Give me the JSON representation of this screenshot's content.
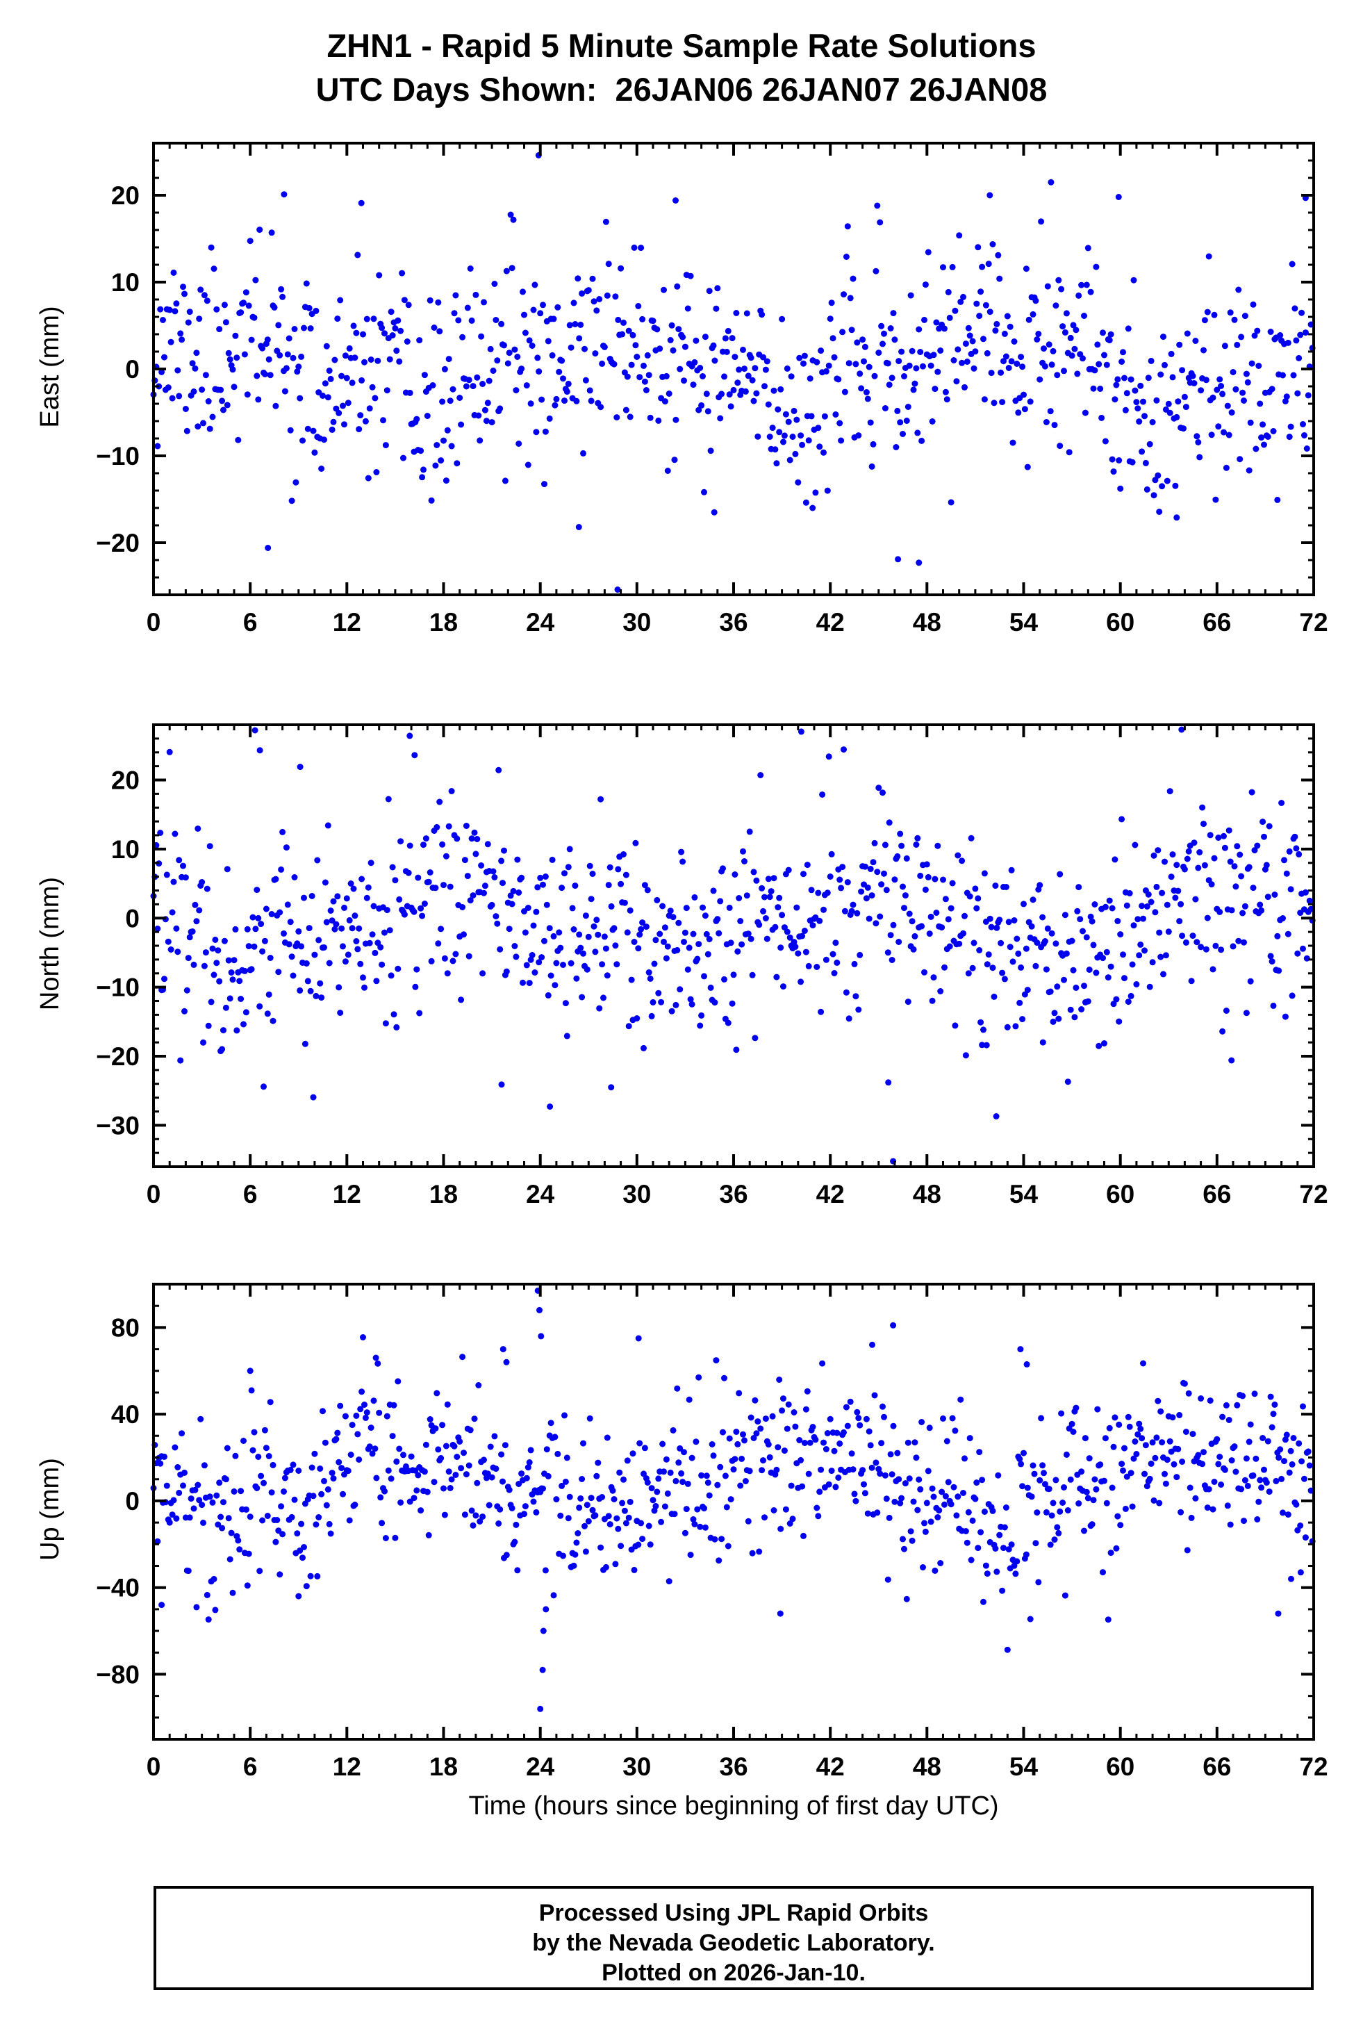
{
  "title": {
    "line1": "ZHN1 - Rapid 5 Minute Sample Rate Solutions",
    "line2": "UTC Days Shown:  26JAN06 26JAN07 26JAN08"
  },
  "xlabel": "Time (hours since beginning of first day UTC)",
  "footer": {
    "lines": [
      "Processed Using JPL Rapid Orbits",
      "by the Nevada Geodetic Laboratory.",
      "Plotted on 2026-Jan-10."
    ]
  },
  "chart_data": [
    {
      "type": "scatter",
      "id": "east",
      "ylabel": "East (mm)",
      "xlim": [
        0,
        72
      ],
      "ylim": [
        -26,
        26
      ],
      "xticks": [
        0,
        6,
        12,
        18,
        24,
        30,
        36,
        42,
        48,
        54,
        60,
        66,
        72
      ],
      "yticks": [
        -20,
        -10,
        0,
        10,
        20
      ],
      "x_minor": 1,
      "y_minor": 2,
      "marker_color": "#0000EE",
      "marker_diameter_px": 9,
      "n_points": 864,
      "offset": 0,
      "noise_sigma": 5.5,
      "waves": [
        {
          "amp": 3.0,
          "period": 24,
          "phase": 0.7
        },
        {
          "amp": 1.6,
          "period": 7.3,
          "phase": 2.1
        }
      ],
      "seed": 11,
      "outliers": [
        [
          23.9,
          24.6
        ],
        [
          28.8,
          -25.4
        ],
        [
          7.1,
          -20.6
        ],
        [
          47.5,
          -22.3
        ],
        [
          55.7,
          21.5
        ],
        [
          59.9,
          19.8
        ],
        [
          51.9,
          20.0
        ],
        [
          12.9,
          19.1
        ],
        [
          32.4,
          19.4
        ],
        [
          8.1,
          20.1
        ],
        [
          71.5,
          19.7
        ],
        [
          46.2,
          -21.9
        ],
        [
          34.8,
          -16.5
        ],
        [
          40.9,
          -16.0
        ],
        [
          63.5,
          -17.1
        ],
        [
          26.4,
          -18.2
        ]
      ]
    },
    {
      "type": "scatter",
      "id": "north",
      "ylabel": "North (mm)",
      "xlim": [
        0,
        72
      ],
      "ylim": [
        -36,
        28
      ],
      "xticks": [
        0,
        6,
        12,
        18,
        24,
        30,
        36,
        42,
        48,
        54,
        60,
        66,
        72
      ],
      "yticks": [
        -30,
        -20,
        -10,
        0,
        10,
        20
      ],
      "x_minor": 1,
      "y_minor": 2,
      "marker_color": "#0000EE",
      "marker_diameter_px": 9,
      "n_points": 864,
      "offset": -1,
      "noise_sigma": 7.0,
      "waves": [
        {
          "amp": 4.0,
          "period": 24,
          "phase": 2.6
        },
        {
          "amp": 2.0,
          "period": 9.1,
          "phase": 0.9
        }
      ],
      "seed": 22,
      "outliers": [
        [
          6.3,
          27.2
        ],
        [
          15.9,
          26.4
        ],
        [
          16.2,
          23.6
        ],
        [
          40.2,
          27.0
        ],
        [
          63.8,
          27.3
        ],
        [
          45.9,
          -35.2
        ],
        [
          24.6,
          -27.3
        ],
        [
          52.3,
          -28.7
        ],
        [
          21.6,
          -24.1
        ],
        [
          28.4,
          -24.5
        ],
        [
          45.6,
          -23.8
        ],
        [
          9.1,
          21.9
        ],
        [
          6.6,
          24.3
        ],
        [
          55.2,
          -18.0
        ],
        [
          51.7,
          -18.4
        ],
        [
          66.9,
          -20.6
        ]
      ]
    },
    {
      "type": "scatter",
      "id": "up",
      "ylabel": "Up (mm)",
      "xlim": [
        0,
        72
      ],
      "ylim": [
        -110,
        100
      ],
      "xticks": [
        0,
        6,
        12,
        18,
        24,
        30,
        36,
        42,
        48,
        54,
        60,
        66,
        72
      ],
      "yticks": [
        -80,
        -40,
        0,
        40,
        80
      ],
      "x_minor": 1,
      "y_minor": 10,
      "marker_color": "#0000EE",
      "marker_diameter_px": 9,
      "n_points": 864,
      "offset": 8,
      "noise_sigma": 19,
      "waves": [
        {
          "amp": 13.0,
          "period": 24,
          "phase": 3.6
        },
        {
          "amp": 6.0,
          "period": 6.2,
          "phase": 1.0
        }
      ],
      "seed": 33,
      "outliers": [
        [
          23.85,
          97
        ],
        [
          23.95,
          88
        ],
        [
          24.05,
          76
        ],
        [
          24.0,
          -96
        ],
        [
          24.15,
          -78
        ],
        [
          24.2,
          -60
        ],
        [
          24.35,
          -50
        ],
        [
          30.1,
          75
        ],
        [
          45.9,
          81
        ],
        [
          44.6,
          72
        ],
        [
          21.7,
          70
        ],
        [
          21.9,
          64
        ],
        [
          13.8,
          66
        ],
        [
          53.8,
          70
        ],
        [
          54.2,
          63
        ],
        [
          38.9,
          -52
        ],
        [
          69.8,
          -52
        ],
        [
          6.0,
          60
        ],
        [
          0.5,
          -48
        ],
        [
          9.0,
          -44
        ],
        [
          71.2,
          -33
        ],
        [
          70.6,
          -36
        ]
      ]
    }
  ]
}
